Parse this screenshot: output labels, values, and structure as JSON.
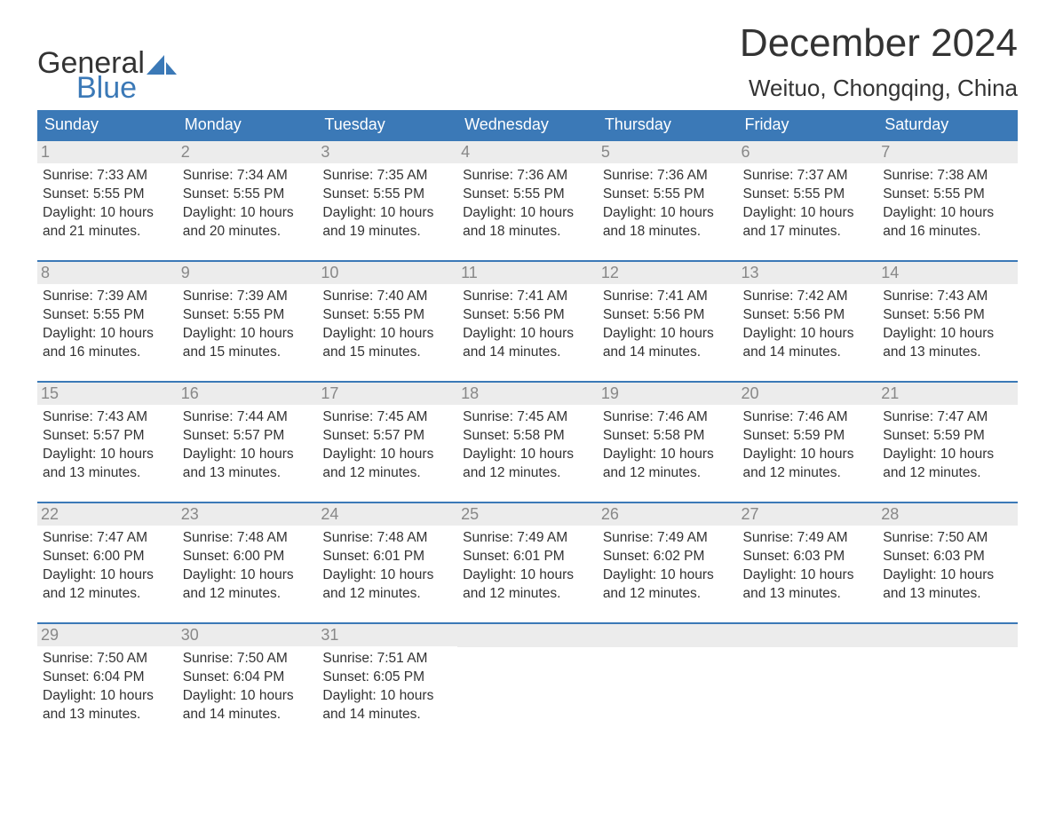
{
  "logo": {
    "text1": "General",
    "text2": "Blue",
    "sail_color": "#3b79b7",
    "text1_color": "#333333",
    "text2_color": "#3b79b7"
  },
  "title": "December 2024",
  "location": "Weituo, Chongqing, China",
  "colors": {
    "header_bg": "#3b79b7",
    "header_text": "#ffffff",
    "daynum_bg": "#ececec",
    "daynum_text": "#888888",
    "body_text": "#333333",
    "row_border": "#3b79b7",
    "page_bg": "#ffffff"
  },
  "typography": {
    "title_fontsize": 44,
    "location_fontsize": 26,
    "header_fontsize": 18,
    "daynum_fontsize": 18,
    "body_fontsize": 15.5,
    "logo_fontsize": 34,
    "font_family": "Arial"
  },
  "day_headers": [
    "Sunday",
    "Monday",
    "Tuesday",
    "Wednesday",
    "Thursday",
    "Friday",
    "Saturday"
  ],
  "weeks": [
    [
      {
        "num": "1",
        "sunrise": "Sunrise: 7:33 AM",
        "sunset": "Sunset: 5:55 PM",
        "dl1": "Daylight: 10 hours",
        "dl2": "and 21 minutes."
      },
      {
        "num": "2",
        "sunrise": "Sunrise: 7:34 AM",
        "sunset": "Sunset: 5:55 PM",
        "dl1": "Daylight: 10 hours",
        "dl2": "and 20 minutes."
      },
      {
        "num": "3",
        "sunrise": "Sunrise: 7:35 AM",
        "sunset": "Sunset: 5:55 PM",
        "dl1": "Daylight: 10 hours",
        "dl2": "and 19 minutes."
      },
      {
        "num": "4",
        "sunrise": "Sunrise: 7:36 AM",
        "sunset": "Sunset: 5:55 PM",
        "dl1": "Daylight: 10 hours",
        "dl2": "and 18 minutes."
      },
      {
        "num": "5",
        "sunrise": "Sunrise: 7:36 AM",
        "sunset": "Sunset: 5:55 PM",
        "dl1": "Daylight: 10 hours",
        "dl2": "and 18 minutes."
      },
      {
        "num": "6",
        "sunrise": "Sunrise: 7:37 AM",
        "sunset": "Sunset: 5:55 PM",
        "dl1": "Daylight: 10 hours",
        "dl2": "and 17 minutes."
      },
      {
        "num": "7",
        "sunrise": "Sunrise: 7:38 AM",
        "sunset": "Sunset: 5:55 PM",
        "dl1": "Daylight: 10 hours",
        "dl2": "and 16 minutes."
      }
    ],
    [
      {
        "num": "8",
        "sunrise": "Sunrise: 7:39 AM",
        "sunset": "Sunset: 5:55 PM",
        "dl1": "Daylight: 10 hours",
        "dl2": "and 16 minutes."
      },
      {
        "num": "9",
        "sunrise": "Sunrise: 7:39 AM",
        "sunset": "Sunset: 5:55 PM",
        "dl1": "Daylight: 10 hours",
        "dl2": "and 15 minutes."
      },
      {
        "num": "10",
        "sunrise": "Sunrise: 7:40 AM",
        "sunset": "Sunset: 5:55 PM",
        "dl1": "Daylight: 10 hours",
        "dl2": "and 15 minutes."
      },
      {
        "num": "11",
        "sunrise": "Sunrise: 7:41 AM",
        "sunset": "Sunset: 5:56 PM",
        "dl1": "Daylight: 10 hours",
        "dl2": "and 14 minutes."
      },
      {
        "num": "12",
        "sunrise": "Sunrise: 7:41 AM",
        "sunset": "Sunset: 5:56 PM",
        "dl1": "Daylight: 10 hours",
        "dl2": "and 14 minutes."
      },
      {
        "num": "13",
        "sunrise": "Sunrise: 7:42 AM",
        "sunset": "Sunset: 5:56 PM",
        "dl1": "Daylight: 10 hours",
        "dl2": "and 14 minutes."
      },
      {
        "num": "14",
        "sunrise": "Sunrise: 7:43 AM",
        "sunset": "Sunset: 5:56 PM",
        "dl1": "Daylight: 10 hours",
        "dl2": "and 13 minutes."
      }
    ],
    [
      {
        "num": "15",
        "sunrise": "Sunrise: 7:43 AM",
        "sunset": "Sunset: 5:57 PM",
        "dl1": "Daylight: 10 hours",
        "dl2": "and 13 minutes."
      },
      {
        "num": "16",
        "sunrise": "Sunrise: 7:44 AM",
        "sunset": "Sunset: 5:57 PM",
        "dl1": "Daylight: 10 hours",
        "dl2": "and 13 minutes."
      },
      {
        "num": "17",
        "sunrise": "Sunrise: 7:45 AM",
        "sunset": "Sunset: 5:57 PM",
        "dl1": "Daylight: 10 hours",
        "dl2": "and 12 minutes."
      },
      {
        "num": "18",
        "sunrise": "Sunrise: 7:45 AM",
        "sunset": "Sunset: 5:58 PM",
        "dl1": "Daylight: 10 hours",
        "dl2": "and 12 minutes."
      },
      {
        "num": "19",
        "sunrise": "Sunrise: 7:46 AM",
        "sunset": "Sunset: 5:58 PM",
        "dl1": "Daylight: 10 hours",
        "dl2": "and 12 minutes."
      },
      {
        "num": "20",
        "sunrise": "Sunrise: 7:46 AM",
        "sunset": "Sunset: 5:59 PM",
        "dl1": "Daylight: 10 hours",
        "dl2": "and 12 minutes."
      },
      {
        "num": "21",
        "sunrise": "Sunrise: 7:47 AM",
        "sunset": "Sunset: 5:59 PM",
        "dl1": "Daylight: 10 hours",
        "dl2": "and 12 minutes."
      }
    ],
    [
      {
        "num": "22",
        "sunrise": "Sunrise: 7:47 AM",
        "sunset": "Sunset: 6:00 PM",
        "dl1": "Daylight: 10 hours",
        "dl2": "and 12 minutes."
      },
      {
        "num": "23",
        "sunrise": "Sunrise: 7:48 AM",
        "sunset": "Sunset: 6:00 PM",
        "dl1": "Daylight: 10 hours",
        "dl2": "and 12 minutes."
      },
      {
        "num": "24",
        "sunrise": "Sunrise: 7:48 AM",
        "sunset": "Sunset: 6:01 PM",
        "dl1": "Daylight: 10 hours",
        "dl2": "and 12 minutes."
      },
      {
        "num": "25",
        "sunrise": "Sunrise: 7:49 AM",
        "sunset": "Sunset: 6:01 PM",
        "dl1": "Daylight: 10 hours",
        "dl2": "and 12 minutes."
      },
      {
        "num": "26",
        "sunrise": "Sunrise: 7:49 AM",
        "sunset": "Sunset: 6:02 PM",
        "dl1": "Daylight: 10 hours",
        "dl2": "and 12 minutes."
      },
      {
        "num": "27",
        "sunrise": "Sunrise: 7:49 AM",
        "sunset": "Sunset: 6:03 PM",
        "dl1": "Daylight: 10 hours",
        "dl2": "and 13 minutes."
      },
      {
        "num": "28",
        "sunrise": "Sunrise: 7:50 AM",
        "sunset": "Sunset: 6:03 PM",
        "dl1": "Daylight: 10 hours",
        "dl2": "and 13 minutes."
      }
    ],
    [
      {
        "num": "29",
        "sunrise": "Sunrise: 7:50 AM",
        "sunset": "Sunset: 6:04 PM",
        "dl1": "Daylight: 10 hours",
        "dl2": "and 13 minutes."
      },
      {
        "num": "30",
        "sunrise": "Sunrise: 7:50 AM",
        "sunset": "Sunset: 6:04 PM",
        "dl1": "Daylight: 10 hours",
        "dl2": "and 14 minutes."
      },
      {
        "num": "31",
        "sunrise": "Sunrise: 7:51 AM",
        "sunset": "Sunset: 6:05 PM",
        "dl1": "Daylight: 10 hours",
        "dl2": "and 14 minutes."
      },
      null,
      null,
      null,
      null
    ]
  ]
}
